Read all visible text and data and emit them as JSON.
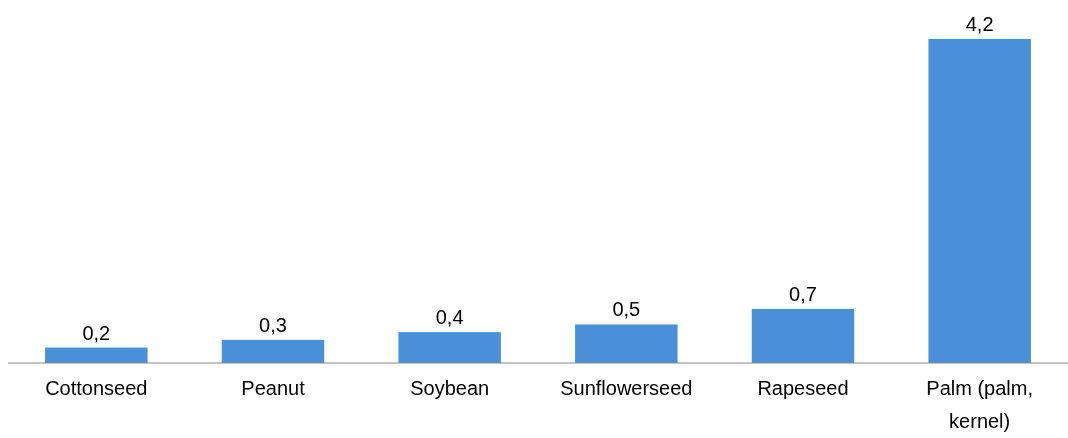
{
  "chart_data": {
    "type": "bar",
    "categories": [
      "Cottonseed",
      "Peanut",
      "Soybean",
      "Sunflowerseed",
      "Rapeseed",
      "Palm (palm, kernel)"
    ],
    "values": [
      0.2,
      0.3,
      0.4,
      0.5,
      0.7,
      4.2
    ],
    "value_labels": [
      "0,2",
      "0,3",
      "0,4",
      "0,5",
      "0,7",
      "4,2"
    ],
    "color": "#4a90d9"
  }
}
